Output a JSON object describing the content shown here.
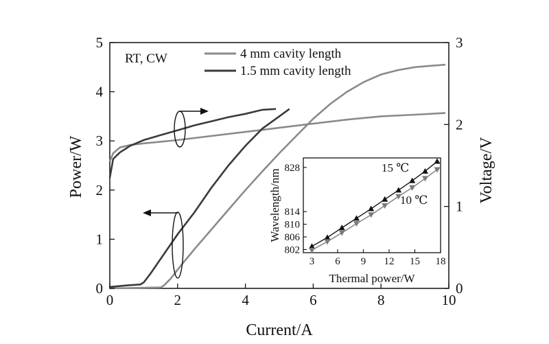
{
  "chart_data": [
    {
      "type": "line",
      "annotation": "RT, CW",
      "xlabel": "Current/A",
      "ylabel_left": "Power/W",
      "ylabel_right": "Voltage/V",
      "xlim": [
        0,
        10
      ],
      "ylim_left": [
        0,
        5
      ],
      "ylim_right": [
        0,
        3
      ],
      "xticks": [
        "0",
        "2",
        "4",
        "6",
        "8",
        "10"
      ],
      "yticks_left": [
        "0",
        "1",
        "2",
        "3",
        "4",
        "5"
      ],
      "yticks_right": [
        "0",
        "1",
        "2",
        "3"
      ],
      "legend_placement": "top-center",
      "grid": false,
      "series": [
        {
          "name": "4 mm cavity length",
          "color": "#8a8a8a",
          "quantity": "power",
          "axis": "left",
          "x": [
            0,
            1.5,
            1.6,
            1.8,
            2.0,
            2.2,
            2.5,
            3.0,
            3.5,
            4.0,
            4.5,
            5.0,
            5.5,
            6.0,
            6.5,
            7.0,
            7.5,
            8.0,
            8.5,
            9.0,
            9.5,
            9.9
          ],
          "y": [
            0,
            0.02,
            0.06,
            0.2,
            0.38,
            0.55,
            0.8,
            1.2,
            1.6,
            2.0,
            2.38,
            2.75,
            3.1,
            3.45,
            3.75,
            4.0,
            4.2,
            4.35,
            4.44,
            4.5,
            4.53,
            4.55
          ]
        },
        {
          "name": "4 mm cavity length",
          "color": "#8a8a8a",
          "quantity": "voltage",
          "axis": "right",
          "x": [
            0,
            0.1,
            0.3,
            0.6,
            1.0,
            1.5,
            2.0,
            3.0,
            4.0,
            5.0,
            6.0,
            7.0,
            8.0,
            9.0,
            9.9
          ],
          "y": [
            1.55,
            1.65,
            1.72,
            1.75,
            1.77,
            1.79,
            1.81,
            1.86,
            1.91,
            1.96,
            2.01,
            2.06,
            2.1,
            2.12,
            2.14
          ]
        },
        {
          "name": "1.5 mm cavity length",
          "color": "#3a3a3a",
          "quantity": "power",
          "axis": "left",
          "x": [
            0,
            0.5,
            0.9,
            1.0,
            1.2,
            1.5,
            2.0,
            2.5,
            3.0,
            3.5,
            4.0,
            4.5,
            5.0,
            5.3
          ],
          "y": [
            0.03,
            0.06,
            0.08,
            0.12,
            0.3,
            0.6,
            1.1,
            1.55,
            2.05,
            2.5,
            2.9,
            3.25,
            3.5,
            3.65
          ]
        },
        {
          "name": "1.5 mm cavity length",
          "color": "#3a3a3a",
          "quantity": "voltage",
          "axis": "right",
          "x": [
            0,
            0.1,
            0.3,
            0.6,
            1.0,
            1.5,
            2.0,
            2.5,
            3.0,
            3.5,
            4.0,
            4.5,
            4.9
          ],
          "y": [
            1.35,
            1.58,
            1.66,
            1.74,
            1.81,
            1.87,
            1.93,
            1.99,
            2.04,
            2.09,
            2.13,
            2.18,
            2.19
          ]
        }
      ]
    },
    {
      "type": "line",
      "subtype": "inset",
      "xlabel": "Thermal power/W",
      "ylabel": "Wavelength/nm",
      "xlim": [
        2,
        18
      ],
      "ylim": [
        801,
        831
      ],
      "xticks": [
        "3",
        "6",
        "9",
        "12",
        "15",
        "18"
      ],
      "yticks": [
        "802",
        "806",
        "810",
        "814",
        "828"
      ],
      "grid": false,
      "series": [
        {
          "name": "15 ℃",
          "color": "#111111",
          "marker": "triangle-up",
          "x": [
            3.0,
            4.8,
            6.5,
            8.2,
            9.9,
            11.5,
            13.1,
            14.7,
            16.2,
            17.6
          ],
          "y": [
            803.0,
            805.8,
            808.9,
            811.9,
            814.9,
            817.9,
            820.8,
            823.8,
            826.8,
            829.9
          ]
        },
        {
          "name": "10 ℃",
          "color": "#7a7a7a",
          "marker": "triangle-down",
          "x": [
            3.0,
            4.8,
            6.5,
            8.2,
            9.9,
            11.5,
            13.1,
            14.7,
            16.2,
            17.6
          ],
          "y": [
            801.8,
            804.5,
            807.3,
            810.2,
            813.0,
            815.9,
            818.8,
            821.6,
            824.5,
            827.3
          ]
        }
      ]
    }
  ]
}
